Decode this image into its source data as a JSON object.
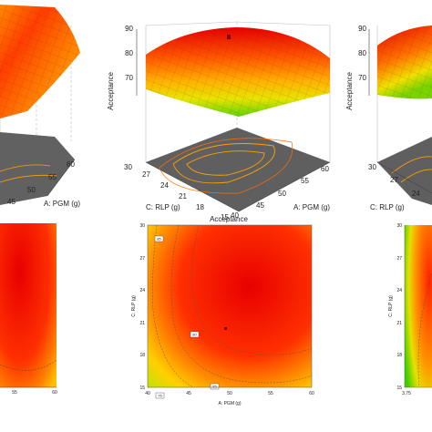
{
  "chart_data": [
    {
      "type": "surface",
      "panel": "left-3d",
      "visible_ticks": {
        "x": [
          "45",
          "50",
          "55",
          "60"
        ]
      },
      "xlabel": "A: PGM (g)"
    },
    {
      "type": "surface",
      "panel": "center-3d",
      "zlabel": "Acceptance",
      "zticks": [
        "70",
        "80",
        "90"
      ],
      "xlabel": "A: PGM (g)",
      "xticks": [
        "40",
        "45",
        "50",
        "55",
        "60"
      ],
      "ylabel": "C: RLP (g)",
      "yticks": [
        "15",
        "18",
        "21",
        "24",
        "27",
        "30"
      ]
    },
    {
      "type": "surface",
      "panel": "right-3d",
      "zlabel": "Acceptance",
      "zticks": [
        "70",
        "80",
        "90"
      ],
      "ylabel": "C: RLP (g)",
      "yticks": [
        "24",
        "27",
        "30"
      ]
    },
    {
      "type": "heatmap",
      "panel": "left-contour",
      "xticks": [
        "55",
        "60"
      ]
    },
    {
      "type": "heatmap",
      "panel": "center-contour",
      "title": "Acceptance",
      "xlabel": "A: PGM (g)",
      "xticks": [
        "40",
        "45",
        "50",
        "55",
        "60"
      ],
      "ylabel": "C: RLP (g)",
      "yticks": [
        "15",
        "18",
        "21",
        "24",
        "27",
        "30"
      ],
      "contour_labels": [
        "80",
        "85",
        "75",
        "85"
      ]
    },
    {
      "type": "heatmap",
      "panel": "right-contour",
      "ylabel": "C: RLP (g)",
      "yticks": [
        "15",
        "18",
        "21",
        "24",
        "27",
        "30"
      ],
      "xticks": [
        "3.75"
      ]
    }
  ]
}
